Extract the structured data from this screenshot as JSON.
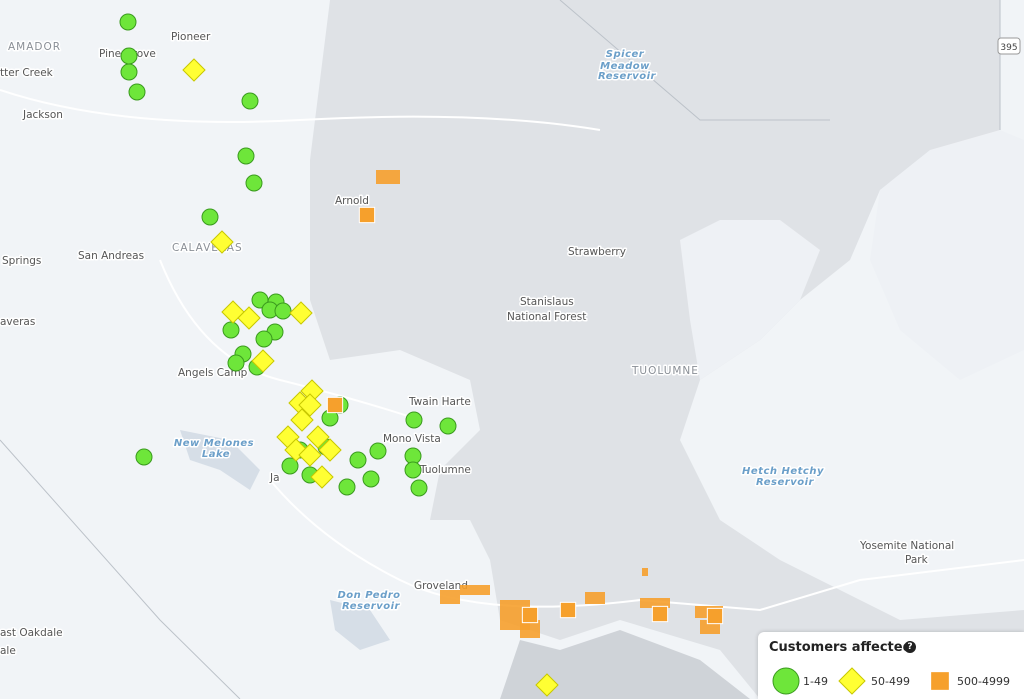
{
  "places": [
    "AMADOR",
    "Pioneer",
    "Pine Grove",
    "tter Creek",
    "Jackson",
    "Arnold",
    "San Andreas",
    "CALAVERAS",
    "Springs",
    "averas",
    "Strawberry",
    "Stanislaus",
    "National Forest",
    "Angels Camp",
    "Twain Harte",
    "Mono Vista",
    "Tuolumne",
    "Ja",
    "TUOLUMNE",
    "Groveland",
    "Yosemite National",
    "Park",
    "ast Oakdale",
    "ale"
  ],
  "water": [
    "Spicer",
    "Meadow",
    "Reservoir",
    "New Melones",
    "Lake",
    "Don Pedro",
    "Reservoir",
    "Hetch Hetchy",
    "Reservoir"
  ],
  "highway": "395",
  "legend": {
    "title": "Customers affected",
    "help": "?",
    "items": [
      {
        "label": "1-49",
        "color": "#6ee63a"
      },
      {
        "label": "50-499",
        "color": "#ffff33"
      },
      {
        "label": "500-4999",
        "color": "#f6a02c"
      }
    ]
  }
}
